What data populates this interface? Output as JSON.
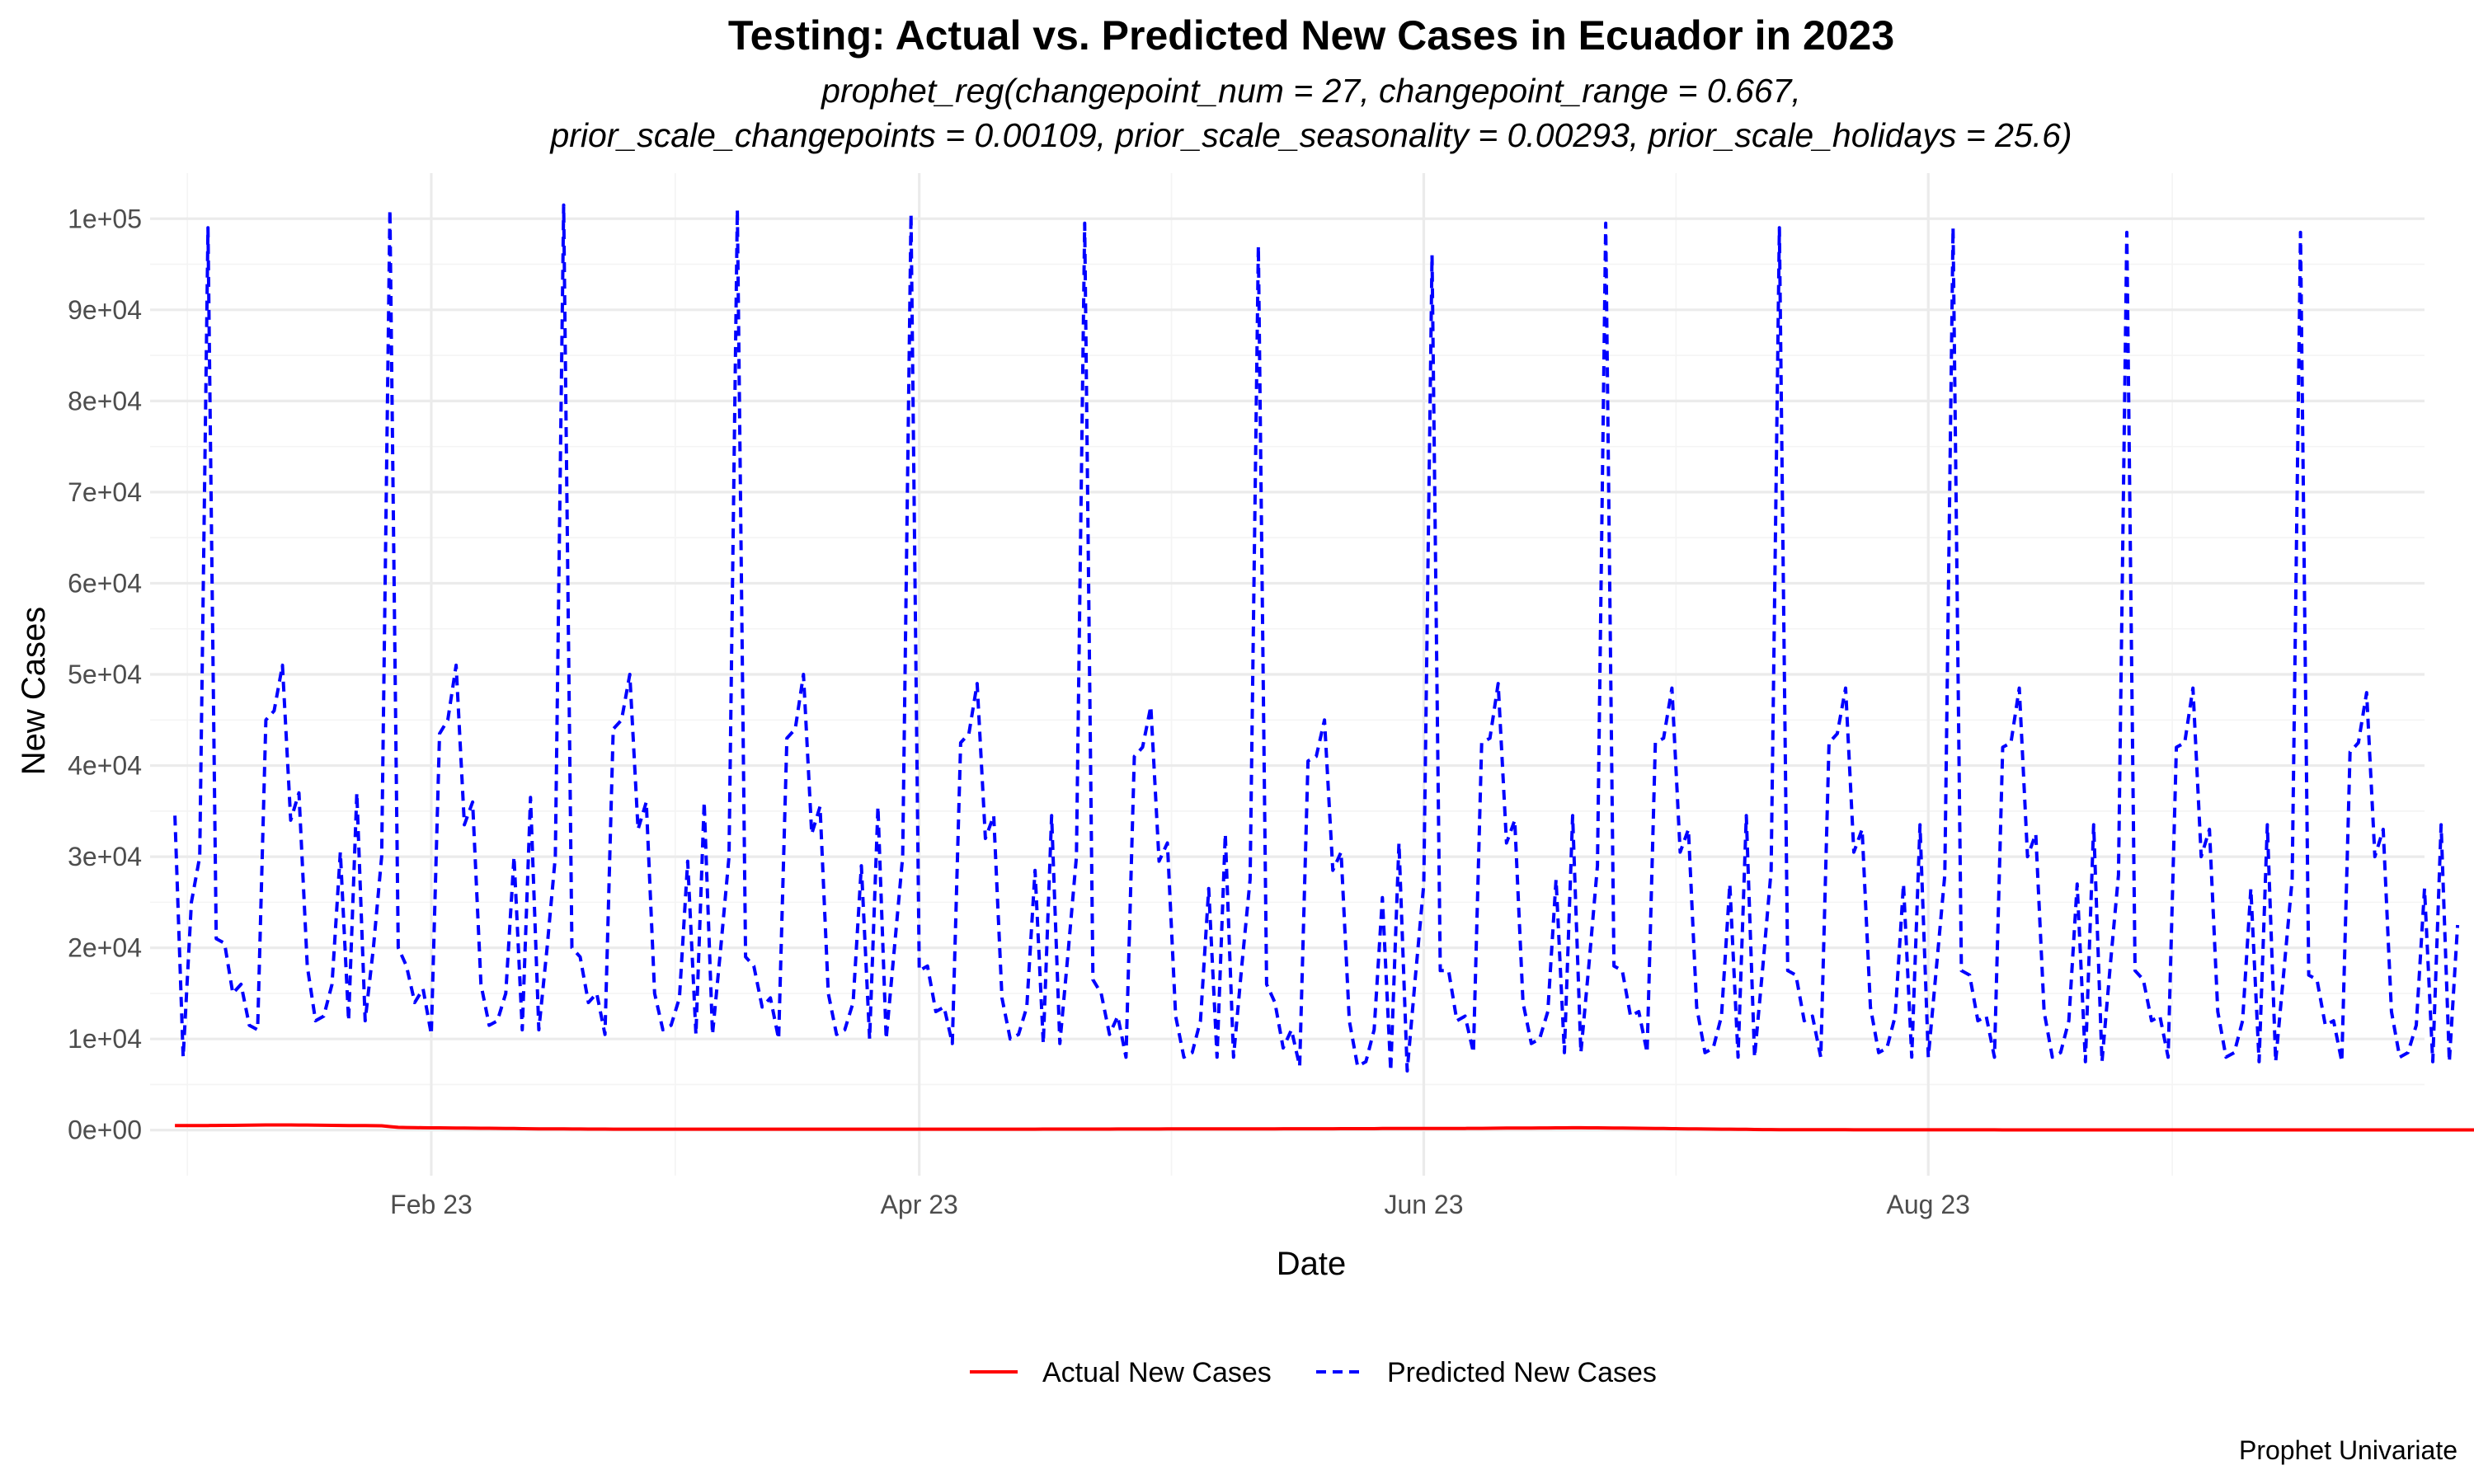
{
  "chart_data": {
    "type": "line",
    "title": "Testing: Actual vs. Predicted New Cases in Ecuador in 2023",
    "subtitle_lines": [
      "prophet_reg(changepoint_num = 27, changepoint_range = 0.667,",
      "prior_scale_changepoints = 0.00109, prior_scale_seasonality = 0.00293, prior_scale_holidays = 25.6)"
    ],
    "xlabel": "Date",
    "ylabel": "New Cases",
    "caption": "Prophet Univariate",
    "x_range": [
      "2022-12-29",
      "2023-09-30"
    ],
    "ylim": [
      -5000,
      105000
    ],
    "y_ticks": [
      0,
      10000,
      20000,
      30000,
      40000,
      50000,
      60000,
      70000,
      80000,
      90000,
      100000
    ],
    "y_tick_labels": [
      "0e+00",
      "1e+04",
      "2e+04",
      "3e+04",
      "4e+04",
      "5e+04",
      "6e+04",
      "7e+04",
      "8e+04",
      "9e+04",
      "1e+05"
    ],
    "x_ticks": [
      "2023-02-01",
      "2023-04-01",
      "2023-06-01",
      "2023-08-01"
    ],
    "x_tick_labels": [
      "Feb 23",
      "Apr 23",
      "Jun 23",
      "Aug 23"
    ],
    "grid": true,
    "legend_position": "bottom",
    "series": [
      {
        "name": "Actual New Cases",
        "color": "#ff0000",
        "line": "solid",
        "x_start": "2023-01-01",
        "x_step_days": 1,
        "values": [
          500,
          500,
          500,
          500,
          500,
          510,
          520,
          520,
          530,
          540,
          550,
          560,
          560,
          560,
          560,
          550,
          550,
          540,
          530,
          520,
          510,
          500,
          500,
          490,
          480,
          470,
          380,
          300,
          280,
          270,
          260,
          250,
          250,
          240,
          230,
          220,
          210,
          200,
          200,
          190,
          180,
          170,
          160,
          150,
          140,
          140,
          130,
          130,
          120,
          120,
          110,
          110,
          110,
          100,
          100,
          100,
          100,
          100,
          100,
          100,
          100,
          100,
          100,
          100,
          100,
          100,
          100,
          100,
          100,
          100,
          100,
          100,
          100,
          100,
          100,
          100,
          100,
          100,
          100,
          100,
          100,
          100,
          100,
          100,
          100,
          100,
          100,
          100,
          100,
          100,
          100,
          100,
          100,
          100,
          100,
          100,
          100,
          100,
          100,
          100,
          100,
          100,
          100,
          100,
          100,
          110,
          110,
          110,
          110,
          110,
          110,
          110,
          110,
          110,
          120,
          120,
          120,
          120,
          120,
          120,
          130,
          130,
          130,
          130,
          130,
          130,
          130,
          140,
          140,
          140,
          140,
          140,
          140,
          140,
          150,
          150,
          150,
          150,
          150,
          150,
          150,
          160,
          160,
          160,
          160,
          160,
          170,
          170,
          170,
          170,
          170,
          180,
          180,
          180,
          180,
          180,
          180,
          190,
          190,
          200,
          210,
          220,
          220,
          230,
          230,
          240,
          240,
          250,
          250,
          260,
          260,
          250,
          250,
          240,
          230,
          220,
          210,
          200,
          190,
          180,
          170,
          160,
          150,
          140,
          130,
          120,
          110,
          100,
          100,
          90,
          80,
          70,
          60,
          60,
          50,
          50,
          50,
          40,
          40,
          40,
          40,
          40,
          40,
          30,
          30,
          30,
          30,
          30,
          30,
          30,
          30,
          30,
          30,
          30,
          30,
          30,
          30,
          30,
          30,
          30,
          30,
          20,
          20,
          20,
          20,
          20,
          20,
          20,
          20,
          20,
          20,
          20,
          20,
          20,
          20,
          20,
          20,
          20,
          20,
          20,
          20,
          20,
          20,
          20,
          20,
          20,
          20,
          20,
          20,
          20,
          20,
          20,
          20,
          20,
          20,
          20,
          20,
          20,
          20,
          20,
          20,
          20,
          20,
          20,
          20,
          20,
          20,
          20,
          20,
          20,
          20,
          20,
          20,
          20,
          20,
          20,
          20,
          20,
          20,
          20,
          20,
          20,
          20,
          20,
          20,
          20,
          20,
          20,
          20,
          20,
          20,
          20,
          20,
          20,
          20,
          20
        ]
      },
      {
        "name": "Predicted New Cases",
        "color": "#0000ff",
        "line": "dashed",
        "x_start": "2023-01-01",
        "x_step_days": 1,
        "values": [
          34500,
          8000,
          25000,
          30000,
          99000,
          21000,
          20500,
          15000,
          16000,
          11500,
          11000,
          45000,
          46000,
          51000,
          34000,
          37000,
          18000,
          12000,
          12500,
          16000,
          30500,
          12000,
          37000,
          12000,
          20000,
          30000,
          101000,
          20000,
          18000,
          14000,
          15500,
          10500,
          43500,
          45000,
          51000,
          33500,
          36000,
          16000,
          11500,
          12000,
          15000,
          30000,
          11000,
          36500,
          11000,
          20000,
          30000,
          101500,
          20000,
          19000,
          14000,
          15000,
          10500,
          44000,
          45000,
          50000,
          33000,
          36000,
          15000,
          11000,
          11500,
          14500,
          29500,
          10500,
          36000,
          10500,
          20000,
          30000,
          101000,
          19000,
          18000,
          13500,
          14500,
          10000,
          43000,
          44000,
          50000,
          32500,
          35500,
          15000,
          10500,
          11000,
          14000,
          29000,
          10000,
          35500,
          10000,
          20000,
          30000,
          100500,
          17500,
          18000,
          13000,
          13500,
          9500,
          42500,
          43500,
          49000,
          32000,
          34500,
          14500,
          10000,
          10500,
          13500,
          28500,
          9500,
          34500,
          9500,
          19500,
          30000,
          99500,
          16500,
          15000,
          10500,
          12500,
          8000,
          41000,
          42000,
          46500,
          29500,
          31500,
          12500,
          8000,
          8500,
          12000,
          26500,
          8000,
          32500,
          8000,
          18000,
          27500,
          97000,
          16000,
          14000,
          9000,
          11000,
          7000,
          40500,
          41000,
          45000,
          28500,
          30500,
          12000,
          7000,
          7500,
          11000,
          25500,
          6500,
          31500,
          6500,
          17000,
          27000,
          96000,
          17500,
          17500,
          12000,
          12500,
          8500,
          42500,
          43000,
          49000,
          31500,
          34000,
          14000,
          9500,
          10000,
          13000,
          27500,
          8500,
          34500,
          8500,
          18500,
          29000,
          99500,
          18000,
          17500,
          12500,
          13000,
          8500,
          42500,
          43000,
          48500,
          30500,
          33000,
          13500,
          8500,
          9000,
          12500,
          27000,
          8000,
          34500,
          8000,
          18000,
          28500,
          99000,
          17500,
          17000,
          12000,
          12500,
          8000,
          42500,
          43500,
          48500,
          30500,
          33000,
          13500,
          8500,
          9000,
          12500,
          27000,
          8000,
          33500,
          8000,
          18000,
          28000,
          99000,
          17500,
          17000,
          12000,
          12500,
          8000,
          42000,
          42500,
          48500,
          30000,
          32500,
          13000,
          8000,
          8500,
          12000,
          27000,
          7500,
          33500,
          7500,
          18000,
          28000,
          98500,
          17500,
          16500,
          12000,
          12500,
          8000,
          42000,
          42500,
          48500,
          30000,
          33000,
          13000,
          8000,
          8500,
          12000,
          26500,
          7500,
          33500,
          7500,
          17500,
          27500,
          98500,
          17000,
          16500,
          11500,
          12000,
          7500,
          41500,
          42500,
          48000,
          30000,
          33000,
          13000,
          8000,
          8500,
          11500,
          26500,
          7500,
          33500,
          7500,
          22500
        ]
      }
    ]
  }
}
